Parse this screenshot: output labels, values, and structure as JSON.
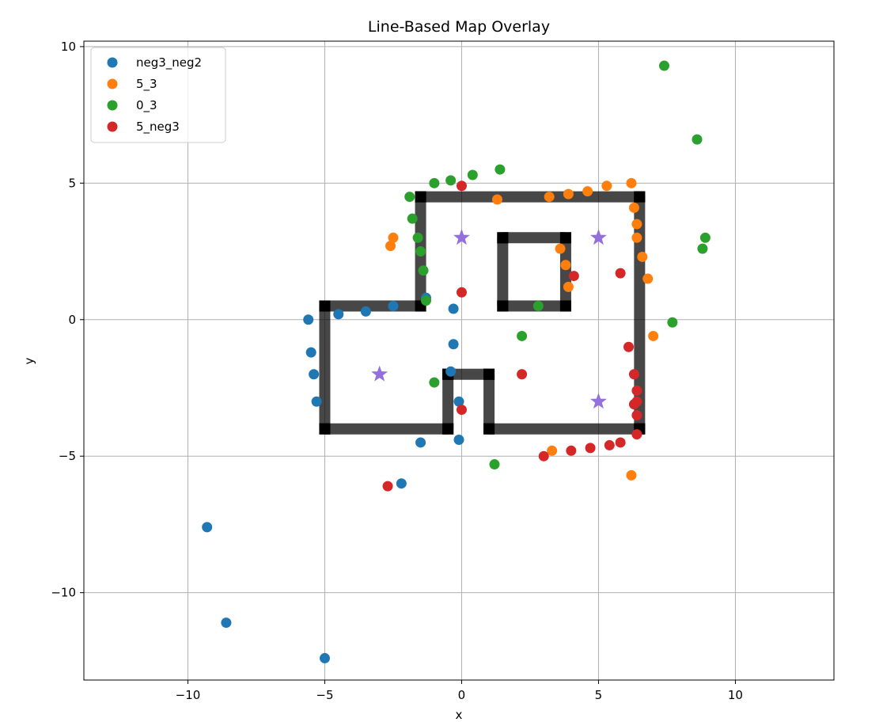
{
  "chart_data": {
    "type": "scatter",
    "title": "Line-Based Map Overlay",
    "xlabel": "x",
    "ylabel": "y",
    "xlim": [
      -13.8,
      13.6
    ],
    "ylim": [
      -13.2,
      10.2
    ],
    "xticks": [
      -10,
      -5,
      0,
      5,
      10
    ],
    "yticks": [
      10,
      5,
      0,
      -5,
      -10
    ],
    "xtick_labels": [
      "−10",
      "−5",
      "0",
      "5",
      "10"
    ],
    "ytick_labels": [
      "10",
      "5",
      "0",
      "−5",
      "−10"
    ],
    "grid": true,
    "legend_position": "top-left",
    "series": [
      {
        "name": "neg3_neg2",
        "color": "#1f77b4",
        "points": [
          [
            -5.6,
            0.0
          ],
          [
            -5.5,
            -1.2
          ],
          [
            -5.4,
            -2.0
          ],
          [
            -5.3,
            -3.0
          ],
          [
            -4.5,
            0.2
          ],
          [
            -3.5,
            0.3
          ],
          [
            -2.5,
            0.5
          ],
          [
            -1.3,
            0.8
          ],
          [
            -0.3,
            0.4
          ],
          [
            -0.3,
            -0.9
          ],
          [
            -0.4,
            -1.9
          ],
          [
            -0.1,
            -3.0
          ],
          [
            -0.1,
            -4.4
          ],
          [
            -1.5,
            -4.5
          ],
          [
            -2.2,
            -6.0
          ],
          [
            -9.3,
            -7.6
          ],
          [
            -8.6,
            -11.1
          ],
          [
            -5.0,
            -12.4
          ]
        ]
      },
      {
        "name": "5_3",
        "color": "#ff7f0e",
        "points": [
          [
            -2.5,
            3.0
          ],
          [
            -2.6,
            2.7
          ],
          [
            1.3,
            4.4
          ],
          [
            3.2,
            4.5
          ],
          [
            3.9,
            4.6
          ],
          [
            4.6,
            4.7
          ],
          [
            5.3,
            4.9
          ],
          [
            6.2,
            5.0
          ],
          [
            6.3,
            4.1
          ],
          [
            6.4,
            3.5
          ],
          [
            6.4,
            3.0
          ],
          [
            6.6,
            2.3
          ],
          [
            6.8,
            1.5
          ],
          [
            3.6,
            2.6
          ],
          [
            3.8,
            2.0
          ],
          [
            3.9,
            1.2
          ],
          [
            7.0,
            -0.6
          ],
          [
            3.3,
            -4.8
          ],
          [
            6.2,
            -5.7
          ]
        ]
      },
      {
        "name": "0_3",
        "color": "#2ca02c",
        "points": [
          [
            -1.9,
            4.5
          ],
          [
            -1.0,
            5.0
          ],
          [
            -0.4,
            5.1
          ],
          [
            0.4,
            5.3
          ],
          [
            1.4,
            5.5
          ],
          [
            -1.8,
            3.7
          ],
          [
            -1.6,
            3.0
          ],
          [
            -1.5,
            2.5
          ],
          [
            -1.4,
            1.8
          ],
          [
            -1.3,
            0.7
          ],
          [
            2.8,
            0.5
          ],
          [
            7.7,
            -0.1
          ],
          [
            2.2,
            -0.6
          ],
          [
            -1.0,
            -2.3
          ],
          [
            1.2,
            -5.3
          ],
          [
            7.4,
            9.3
          ],
          [
            8.6,
            6.6
          ],
          [
            8.9,
            3.0
          ],
          [
            8.8,
            2.6
          ]
        ]
      },
      {
        "name": "5_neg3",
        "color": "#d62728",
        "points": [
          [
            0.0,
            4.9
          ],
          [
            0.0,
            1.0
          ],
          [
            4.1,
            1.6
          ],
          [
            5.8,
            1.7
          ],
          [
            6.1,
            -1.0
          ],
          [
            6.3,
            -2.0
          ],
          [
            2.2,
            -2.0
          ],
          [
            6.4,
            -2.6
          ],
          [
            6.4,
            -3.0
          ],
          [
            6.3,
            -3.1
          ],
          [
            6.4,
            -3.5
          ],
          [
            0.0,
            -3.3
          ],
          [
            6.4,
            -4.2
          ],
          [
            5.8,
            -4.5
          ],
          [
            5.4,
            -4.6
          ],
          [
            4.7,
            -4.7
          ],
          [
            4.0,
            -4.8
          ],
          [
            3.0,
            -5.0
          ],
          [
            -2.7,
            -6.1
          ]
        ]
      }
    ],
    "map_segments": {
      "color": "#000000",
      "lines": [
        [
          [
            -5.0,
            0.5
          ],
          [
            -1.5,
            0.5
          ]
        ],
        [
          [
            -1.5,
            0.5
          ],
          [
            -1.5,
            4.5
          ]
        ],
        [
          [
            -1.5,
            4.5
          ],
          [
            6.5,
            4.5
          ]
        ],
        [
          [
            6.5,
            4.5
          ],
          [
            6.5,
            -4.0
          ]
        ],
        [
          [
            6.5,
            -4.0
          ],
          [
            1.0,
            -4.0
          ]
        ],
        [
          [
            1.0,
            -4.0
          ],
          [
            1.0,
            -2.0
          ]
        ],
        [
          [
            1.0,
            -2.0
          ],
          [
            -0.5,
            -2.0
          ]
        ],
        [
          [
            -0.5,
            -2.0
          ],
          [
            -0.5,
            -4.0
          ]
        ],
        [
          [
            -0.5,
            -4.0
          ],
          [
            -5.0,
            -4.0
          ]
        ],
        [
          [
            -5.0,
            -4.0
          ],
          [
            -5.0,
            0.5
          ]
        ],
        [
          [
            1.5,
            3.0
          ],
          [
            3.8,
            3.0
          ]
        ],
        [
          [
            3.8,
            3.0
          ],
          [
            3.8,
            0.5
          ]
        ],
        [
          [
            3.8,
            0.5
          ],
          [
            1.5,
            0.5
          ]
        ],
        [
          [
            1.5,
            0.5
          ],
          [
            1.5,
            3.0
          ]
        ]
      ]
    },
    "star_markers": {
      "color": "#9370db",
      "points": [
        [
          0.0,
          3.0
        ],
        [
          5.0,
          3.0
        ],
        [
          -3.0,
          -2.0
        ],
        [
          5.0,
          -3.0
        ]
      ]
    }
  }
}
